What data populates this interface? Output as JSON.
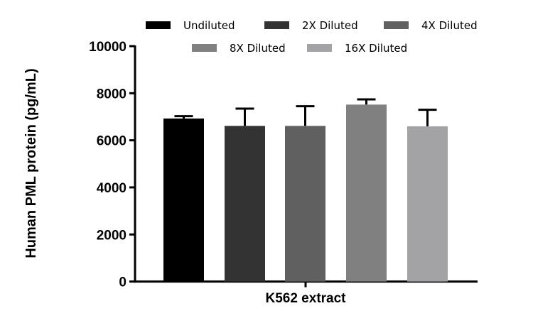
{
  "chart_data": {
    "type": "bar",
    "title": "",
    "xlabel": "K562 extract",
    "ylabel": "Human PML protein (pg/mL)",
    "ylim": [
      0,
      10000
    ],
    "yticks": [
      "0",
      "2000",
      "4000",
      "6000",
      "8000",
      "10000"
    ],
    "grid": false,
    "legend_placement": "top",
    "categories": [
      "K562 extract"
    ],
    "series": [
      {
        "name": "Undiluted",
        "value": 6926,
        "error": 100,
        "color": "#000000"
      },
      {
        "name": "2X Diluted",
        "value": 6612,
        "error": 736,
        "color": "#333333"
      },
      {
        "name": "4X Diluted",
        "value": 6612,
        "error": 835,
        "color": "#606060"
      },
      {
        "name": "8X Diluted",
        "value": 7517,
        "error": 222,
        "color": "#808080"
      },
      {
        "name": "16X Diluted",
        "value": 6594,
        "error": 702,
        "color": "#a3a3a6"
      }
    ]
  }
}
